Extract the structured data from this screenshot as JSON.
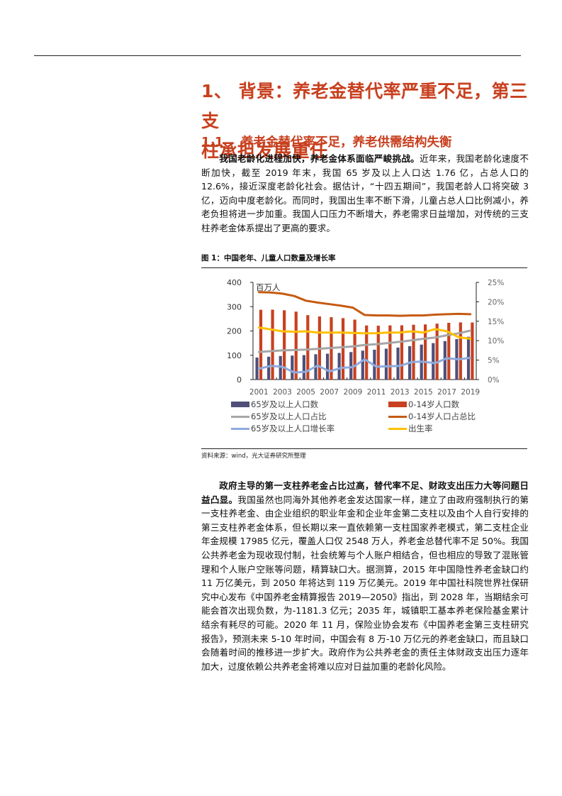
{
  "section": {
    "title": "1、 背景：养老金替代率严重不足，第三支柱承担发展重任",
    "title_line1": "1、 背景：养老金替代率严重不足，第三支",
    "title_line2": "柱承担发展重任",
    "subsection_number": "1.1、",
    "subsection_title": "养老金替代率不足，养老供需结构失衡"
  },
  "paragraph1": {
    "lead": "我国老龄化进程加快，养老金体系面临严峻挑战。",
    "body": "近年来，我国老龄化速度不断加快，截至 2019 年末，我国 65 岁及以上人口达 1.76 亿，占总人口的 12.6%，接近深度老龄化社会。据估计，“十四五期间”，我国老龄人口将突破 3 亿，迈向中度老龄化。而同时，我国出生率不断下滑，儿童占总人口比例减小，养老负担将进一步加重。我国人口压力不断增大，养老需求日益增加，对传统的三支柱养老金体系提出了更高的要求。"
  },
  "figure": {
    "title": "图 1：中国老年、儿童人口数量及增长率",
    "source": "资料来源：wind，光大证券研究所整理"
  },
  "paragraph2": {
    "lead": "政府主导的第一支柱养老金占比过高，替代率不足、财政支出压力大等问题日益凸显。",
    "body": "我国虽然也同海外其他养老金发达国家一样，建立了由政府强制执行的第一支柱养老金、由企业组织的职业年金和企业年金第二支柱以及由个人自行安排的第三支柱养老金体系，但长期以来一直依赖第一支柱国家养老模式，第二支柱企业年金规模 17985 亿元，覆盖人口仅 2548 万人，养老金总替代率不足 50%。我国公共养老金为现收现付制，社会统筹与个人账户相结合，但也相应的导致了混账管理和个人账户空账等问题，精算缺口大。据测算，2015 年中国隐性养老金缺口约 11 万亿美元，到 2050 年将达到 119 万亿美元。2019 年中国社科院世界社保研究中心发布《中国养老金精算报告 2019—2050》指出，到 2028 年，当期结余可能会首次出现负数，为-1181.3 亿元；2035 年，城镇职工基本养老保险基金累计结余有耗尽的可能。2020 年 11 月，保险业协会发布《中国养老金第三支柱研究报告》，预测未来 5-10 年时间，中国会有 8 万-10 万亿元的养老金缺口，而且缺口会随着时间的推移进一步扩大。政府作为公共养老金的责任主体财政支出压力逐年加大，过度依赖公共养老金将难以应对日益加重的老龄化风险。"
  },
  "colors": {
    "heading": "#c8401f",
    "bar_65plus": "#4f4f7a",
    "bar_0_14": "#c8401f",
    "line_65plus_share": "#a6a6a6",
    "line_0_14_share": "#c55a11",
    "line_65plus_growth": "#8faadc",
    "line_birth_rate": "#ffc000"
  },
  "chart_data": {
    "type": "bar",
    "title": "中国老年、儿童人口数量及增长率",
    "left_axis_unit": "百万人",
    "left_ylim": [
      0,
      400
    ],
    "left_ticks": [
      "0",
      "100",
      "200",
      "300",
      "400"
    ],
    "right_ylim": [
      0,
      25
    ],
    "right_ticks": [
      "0%",
      "5%",
      "10%",
      "15%",
      "20%",
      "25%"
    ],
    "x_tick_labels": [
      "2001",
      "2003",
      "2005",
      "2007",
      "2009",
      "2011",
      "2013",
      "2015",
      "2017",
      "2019"
    ],
    "categories": [
      "2001",
      "2002",
      "2003",
      "2004",
      "2005",
      "2006",
      "2007",
      "2008",
      "2009",
      "2010",
      "2011",
      "2012",
      "2013",
      "2014",
      "2015",
      "2016",
      "2017",
      "2018",
      "2019"
    ],
    "series": [
      {
        "name": "65岁及以上人口数",
        "type": "bar",
        "axis": "left",
        "unit": "百万人",
        "values": [
          90.6,
          94.0,
          96.9,
          98.6,
          100.6,
          104.2,
          106.4,
          109.6,
          113.1,
          119.0,
          122.9,
          127.1,
          131.6,
          137.6,
          143.9,
          150.0,
          158.3,
          166.6,
          176.0
        ]
      },
      {
        "name": "0-14岁人口数",
        "type": "bar",
        "axis": "left",
        "unit": "百万人",
        "values": [
          287.2,
          287.7,
          285.1,
          279.5,
          265.0,
          259.6,
          256.6,
          252.7,
          246.6,
          222.6,
          221.6,
          222.9,
          223.3,
          225.6,
          226.8,
          230.1,
          233.5,
          235.2,
          234.9
        ]
      },
      {
        "name": "65岁及以上人口占比",
        "type": "line",
        "axis": "right",
        "unit": "%",
        "values": [
          7.1,
          7.3,
          7.5,
          7.6,
          7.7,
          7.9,
          8.1,
          8.3,
          8.5,
          8.9,
          9.1,
          9.4,
          9.7,
          10.1,
          10.5,
          10.8,
          11.4,
          11.9,
          12.6
        ]
      },
      {
        "name": "0-14岁人口占总比",
        "type": "line",
        "axis": "right",
        "unit": "%",
        "values": [
          22.5,
          22.4,
          22.1,
          21.5,
          20.3,
          19.8,
          19.4,
          19.0,
          18.5,
          16.6,
          16.5,
          16.5,
          16.4,
          16.5,
          16.5,
          16.7,
          16.8,
          16.9,
          16.8
        ]
      },
      {
        "name": "65岁及以上人口增长率",
        "type": "line",
        "axis": "right",
        "unit": "%",
        "values": [
          2.8,
          3.5,
          3.3,
          1.8,
          2.0,
          3.6,
          2.1,
          3.0,
          3.2,
          5.2,
          3.3,
          3.4,
          3.5,
          4.5,
          4.6,
          4.2,
          5.5,
          5.2,
          5.6
        ]
      },
      {
        "name": "出生率",
        "type": "line",
        "axis": "right",
        "unit": "‰",
        "values": [
          13.4,
          12.9,
          12.4,
          12.3,
          12.4,
          12.1,
          12.1,
          12.1,
          12.0,
          11.9,
          11.9,
          12.1,
          12.1,
          12.4,
          12.1,
          13.0,
          12.4,
          10.9,
          10.5
        ]
      }
    ],
    "legend_position": "bottom",
    "grid": false
  }
}
